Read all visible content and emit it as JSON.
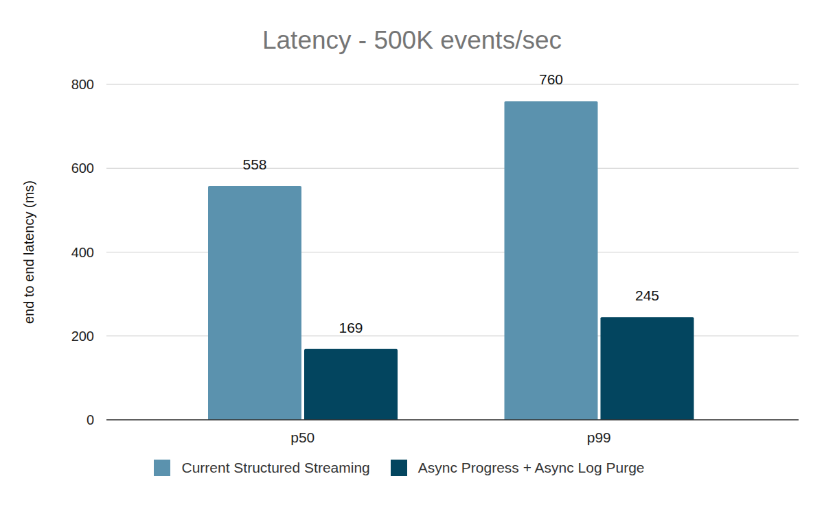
{
  "chart_data": {
    "type": "bar",
    "title": "Latency - 500K events/sec",
    "y_label": "end to end latency (ms)",
    "categories": [
      "p50",
      "p99"
    ],
    "series": [
      {
        "name": "Current Structured Streaming",
        "color": "#5b92ae",
        "values": [
          558,
          760
        ]
      },
      {
        "name": "Async Progress + Async Log Purge",
        "color": "#03455f",
        "values": [
          169,
          245
        ]
      }
    ],
    "ylim": [
      0,
      800
    ],
    "yticks": [
      0,
      200,
      400,
      600,
      800
    ],
    "grid": true,
    "legend": "bottom",
    "data_labels": true
  }
}
